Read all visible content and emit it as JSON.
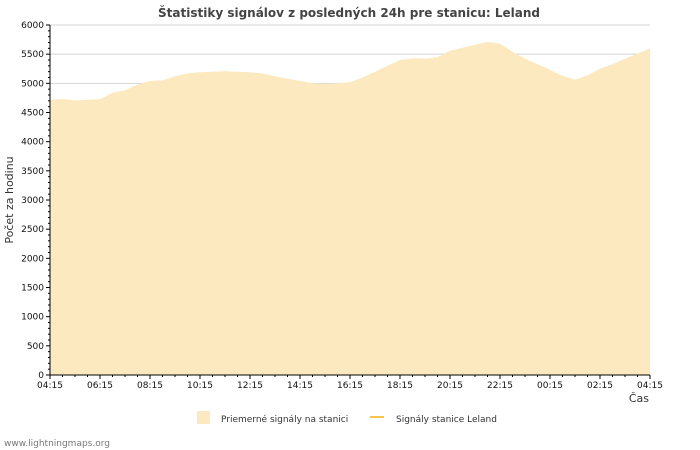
{
  "chart_data": {
    "type": "area",
    "title": "Štatistiky signálov z posledných 24h pre stanicu: Leland",
    "ylabel": "Počet za hodinu",
    "xlabel": "Čas",
    "ylim": [
      0,
      6000
    ],
    "yticks": [
      0,
      500,
      1000,
      1500,
      2000,
      2500,
      3000,
      3500,
      4000,
      4500,
      5000,
      5500,
      6000
    ],
    "xlim": [
      0,
      24
    ],
    "xtick_labels": [
      "04:15",
      "06:15",
      "08:15",
      "10:15",
      "12:15",
      "14:15",
      "16:15",
      "18:15",
      "20:15",
      "22:15",
      "00:15",
      "02:15",
      "04:15"
    ],
    "grid": true,
    "series": [
      {
        "name": "Priemerné signály na stanici",
        "color": "#fde9bf",
        "x": [
          0.0,
          0.5,
          1.0,
          1.5,
          2.0,
          2.5,
          3.0,
          3.5,
          4.0,
          4.5,
          5.0,
          5.5,
          6.0,
          6.5,
          7.0,
          7.5,
          8.0,
          8.5,
          9.0,
          9.5,
          10.0,
          10.5,
          11.0,
          11.5,
          12.0,
          12.5,
          13.0,
          13.5,
          14.0,
          14.5,
          15.0,
          15.5,
          16.0,
          16.5,
          17.0,
          17.5,
          18.0,
          18.5,
          19.0,
          19.5,
          20.0,
          20.5,
          21.0,
          21.5,
          22.0,
          22.5,
          23.0,
          23.5,
          24.0
        ],
        "values": [
          4720,
          4730,
          4710,
          4720,
          4730,
          4840,
          4880,
          4980,
          5040,
          5050,
          5120,
          5170,
          5190,
          5200,
          5210,
          5200,
          5190,
          5170,
          5120,
          5080,
          5040,
          5000,
          4990,
          5000,
          5020,
          5100,
          5200,
          5300,
          5400,
          5430,
          5420,
          5450,
          5560,
          5610,
          5660,
          5710,
          5680,
          5540,
          5420,
          5330,
          5230,
          5130,
          5060,
          5140,
          5250,
          5330,
          5420,
          5510,
          5600
        ]
      },
      {
        "name": "Signály stanice Leland",
        "color": "#f6c44e",
        "x": [],
        "values": []
      }
    ]
  },
  "footer": {
    "credit": "www.lightningmaps.org"
  }
}
